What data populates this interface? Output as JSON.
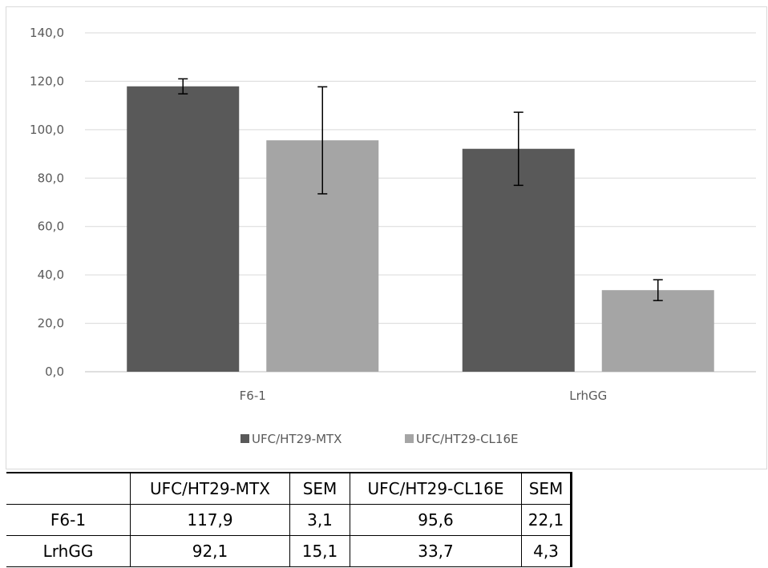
{
  "chart_data": {
    "type": "bar",
    "categories": [
      "F6-1",
      "LrhGG"
    ],
    "series": [
      {
        "name": "UFC/HT29-MTX",
        "values": [
          117.9,
          92.1
        ],
        "errors": [
          3.1,
          15.1
        ],
        "color": "#595959"
      },
      {
        "name": "UFC/HT29-CL16E",
        "values": [
          95.6,
          33.7
        ],
        "errors": [
          22.1,
          4.3
        ],
        "color": "#a5a5a5"
      }
    ],
    "ylim": [
      0,
      140
    ],
    "yticks": [
      "0,0",
      "20,0",
      "40,0",
      "60,0",
      "80,0",
      "100,0",
      "120,0",
      "140,0"
    ],
    "grid": true,
    "legend_position": "bottom"
  },
  "table": {
    "headers": [
      "",
      "UFC/HT29-MTX",
      "SEM",
      "UFC/HT29-CL16E",
      "SEM"
    ],
    "rows": [
      [
        "F6-1",
        "117,9",
        "3,1",
        "95,6",
        "22,1"
      ],
      [
        "LrhGG",
        "92,1",
        "15,1",
        "33,7",
        "4,3"
      ]
    ]
  }
}
